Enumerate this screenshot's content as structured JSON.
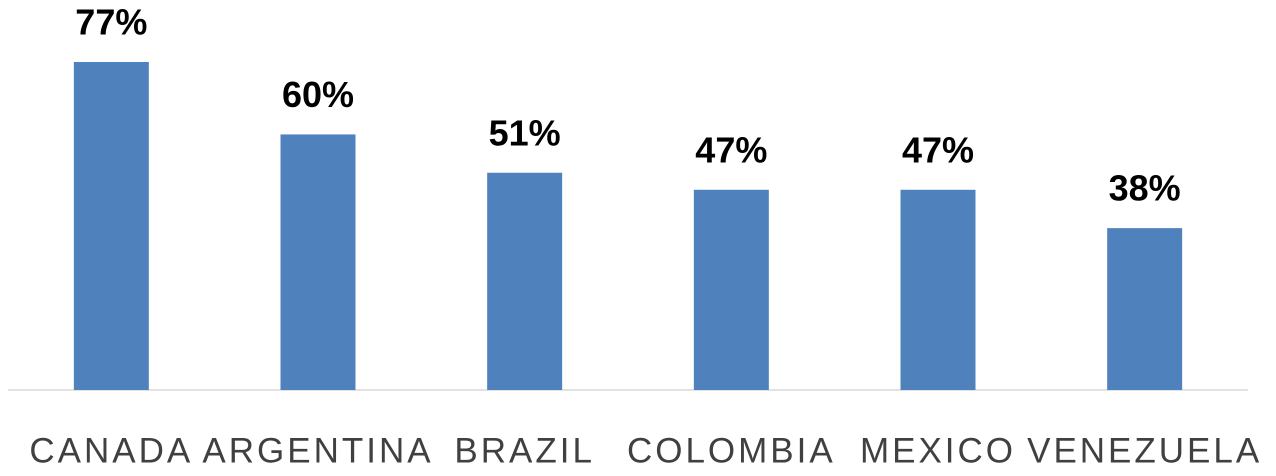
{
  "chart_data": {
    "type": "bar",
    "categories": [
      "CANADA",
      "ARGENTINA",
      "BRAZIL",
      "COLOMBIA",
      "MEXICO",
      "VENEZUELA"
    ],
    "values": [
      77,
      60,
      51,
      47,
      47,
      38
    ],
    "value_labels": [
      "77%",
      "60%",
      "51%",
      "47%",
      "47%",
      "38%"
    ],
    "color": "#4f81bd"
  }
}
